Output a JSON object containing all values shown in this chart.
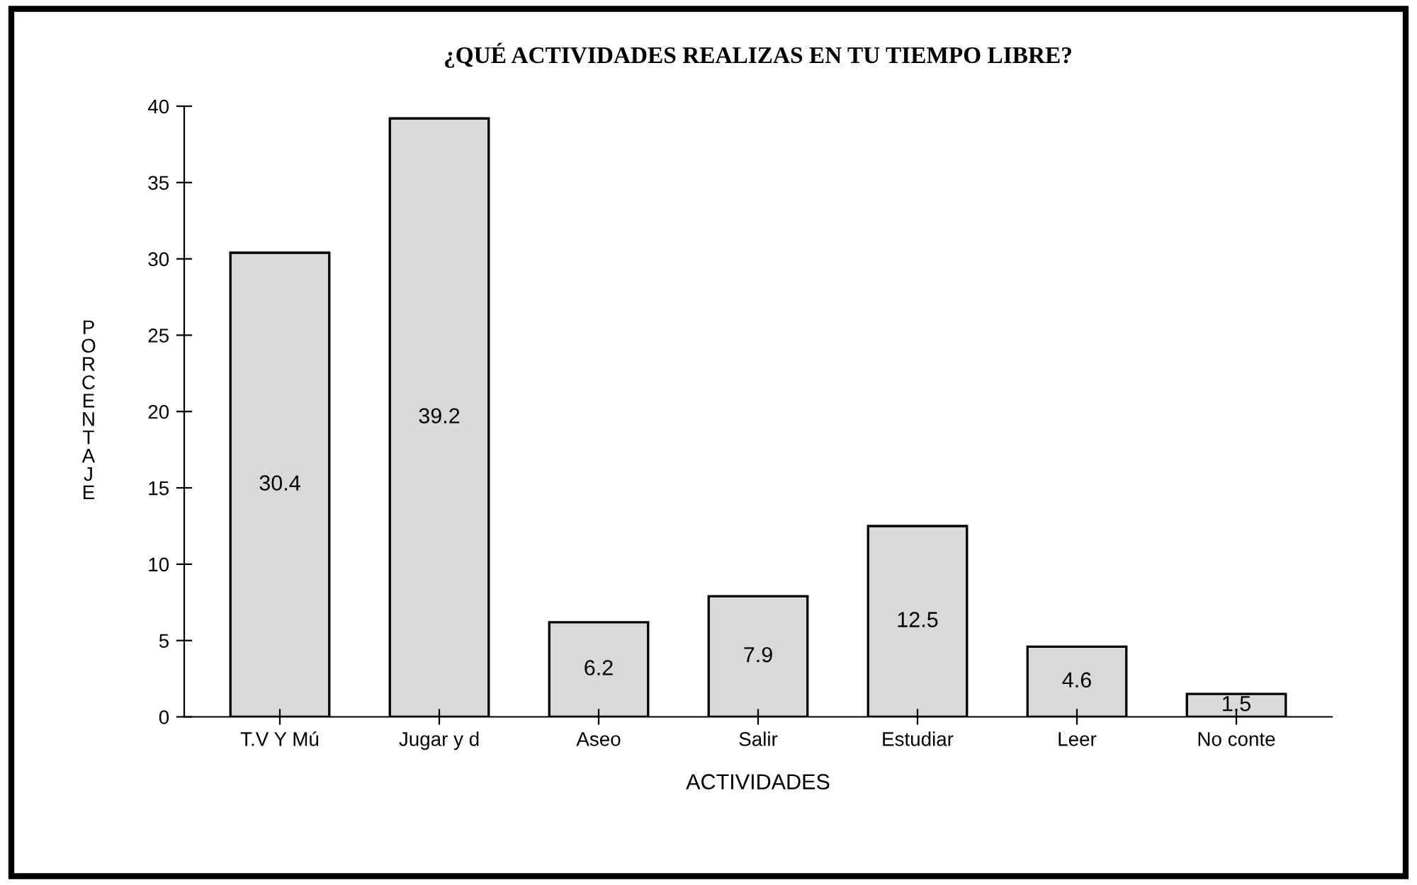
{
  "chart_data": {
    "type": "bar",
    "title": "¿QUÉ ACTIVIDADES REALIZAS EN TU TIEMPO LIBRE?",
    "xlabel": "ACTIVIDADES",
    "ylabel": "PORCENTAJE",
    "categories": [
      "T.V Y Mú",
      "Jugar y d",
      "Aseo",
      "Salir",
      "Estudiar",
      "Leer",
      "No conte"
    ],
    "values": [
      30.4,
      39.2,
      6.2,
      7.9,
      12.5,
      4.6,
      1.5
    ],
    "color": "#d9d9d9",
    "ylim": [
      0,
      40
    ],
    "yticks": [
      0,
      5,
      10,
      15,
      20,
      25,
      30,
      35,
      40
    ],
    "data_labels": true,
    "grid": false,
    "legend": false
  }
}
